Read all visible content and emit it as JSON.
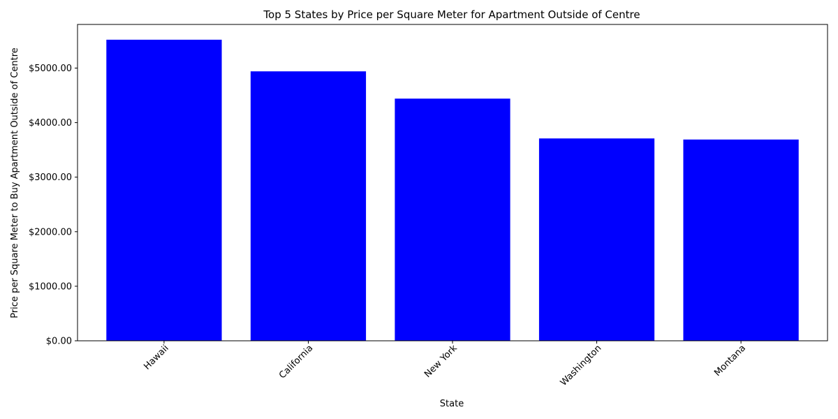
{
  "chart_data": {
    "type": "bar",
    "title": "Top 5 States by Price per Square Meter for Apartment Outside of Centre",
    "xlabel": "State",
    "ylabel": "Price per Square Meter to Buy Apartment Outside of Centre",
    "categories": [
      "Hawaii",
      "California",
      "New York",
      "Washington",
      "Montana"
    ],
    "values": [
      5520,
      4940,
      4440,
      3710,
      3690
    ],
    "ylim": [
      0,
      5800
    ],
    "y_ticks": [
      0,
      1000,
      2000,
      3000,
      4000,
      5000
    ],
    "y_tick_labels": [
      "$0.00",
      "$1000.00",
      "$2000.00",
      "$3000.00",
      "$4000.00",
      "$5000.00"
    ],
    "bar_color": "#0000ff",
    "x_tick_rotation": 45,
    "grid": false,
    "legend": "none"
  }
}
